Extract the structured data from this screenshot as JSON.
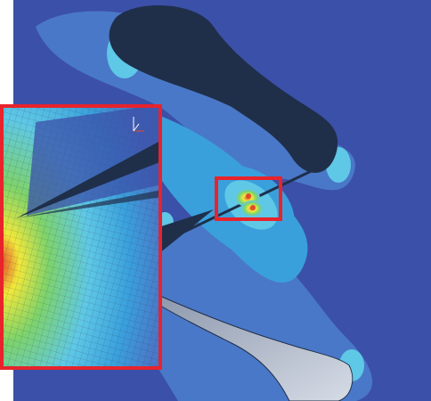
{
  "image": {
    "subject": "fea-stress-contour-plot",
    "colors": {
      "background": "#3b50a8",
      "level_1": "#4a78c8",
      "level_2": "#3aa0dc",
      "level_3": "#5fc8e6",
      "level_4": "#7ed36b",
      "level_5": "#f1e83a",
      "level_6": "#e5482c",
      "highlight_box": "#e8232b",
      "dark_part": "#1f2f4a",
      "grey_part": "#b7c0d0"
    },
    "inset": {
      "axis_icon": "axis-triad-icon",
      "mesh_visible": true
    }
  }
}
